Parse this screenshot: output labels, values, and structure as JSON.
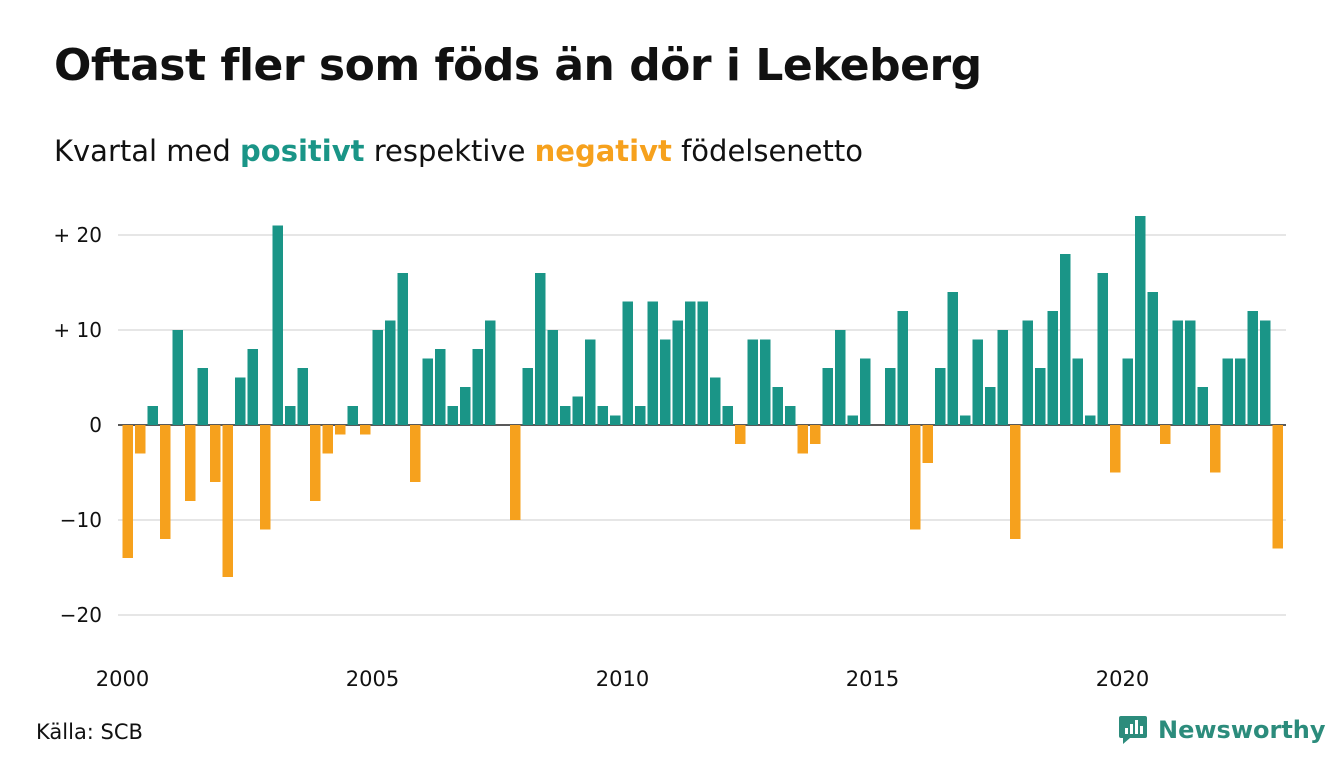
{
  "title": "Oftast fler som föds än dör i Lekeberg",
  "subtitle": {
    "before": "Kvartal med ",
    "positive_word": "positivt",
    "middle": " respektive ",
    "negative_word": "negativt",
    "after": " födelsenetto"
  },
  "source": "Källa: SCB",
  "brand": "Newsworthy",
  "colors": {
    "positive": "#1a9587",
    "negative": "#f6a11d",
    "grid": "#dddddd",
    "text": "#111111",
    "brand": "#2c8c7c"
  },
  "chart_data": {
    "type": "bar",
    "title": "Oftast fler som föds än dör i Lekeberg",
    "subtitle": "Kvartal med positivt respektive negativt födelsenetto",
    "xlabel": "",
    "ylabel": "",
    "ylim": [
      -20,
      22
    ],
    "grid": true,
    "y_ticks": [
      {
        "value": 20,
        "label": "+ 20"
      },
      {
        "value": 10,
        "label": "+ 10"
      },
      {
        "value": 0,
        "label": "0"
      },
      {
        "value": -10,
        "label": "−10"
      },
      {
        "value": -20,
        "label": "−20"
      }
    ],
    "x_ticks": [
      "2000",
      "2005",
      "2010",
      "2015",
      "2020"
    ],
    "start_year": 2000,
    "values": [
      -14,
      -3,
      2,
      -12,
      10,
      -8,
      6,
      -6,
      -16,
      5,
      8,
      -11,
      21,
      2,
      6,
      -8,
      -3,
      -1,
      2,
      -1,
      10,
      11,
      16,
      -6,
      7,
      8,
      2,
      4,
      8,
      11,
      0,
      -10,
      6,
      16,
      10,
      2,
      3,
      9,
      2,
      1,
      13,
      2,
      13,
      9,
      11,
      13,
      13,
      5,
      2,
      -2,
      9,
      9,
      4,
      2,
      -3,
      -2,
      6,
      10,
      1,
      7,
      0,
      6,
      12,
      -11,
      -4,
      6,
      14,
      1,
      9,
      4,
      10,
      -12,
      11,
      6,
      12,
      18,
      7,
      1,
      16,
      -5,
      7,
      22,
      14,
      -2,
      11,
      11,
      4,
      -5,
      7,
      7,
      12,
      11,
      -13
    ]
  }
}
